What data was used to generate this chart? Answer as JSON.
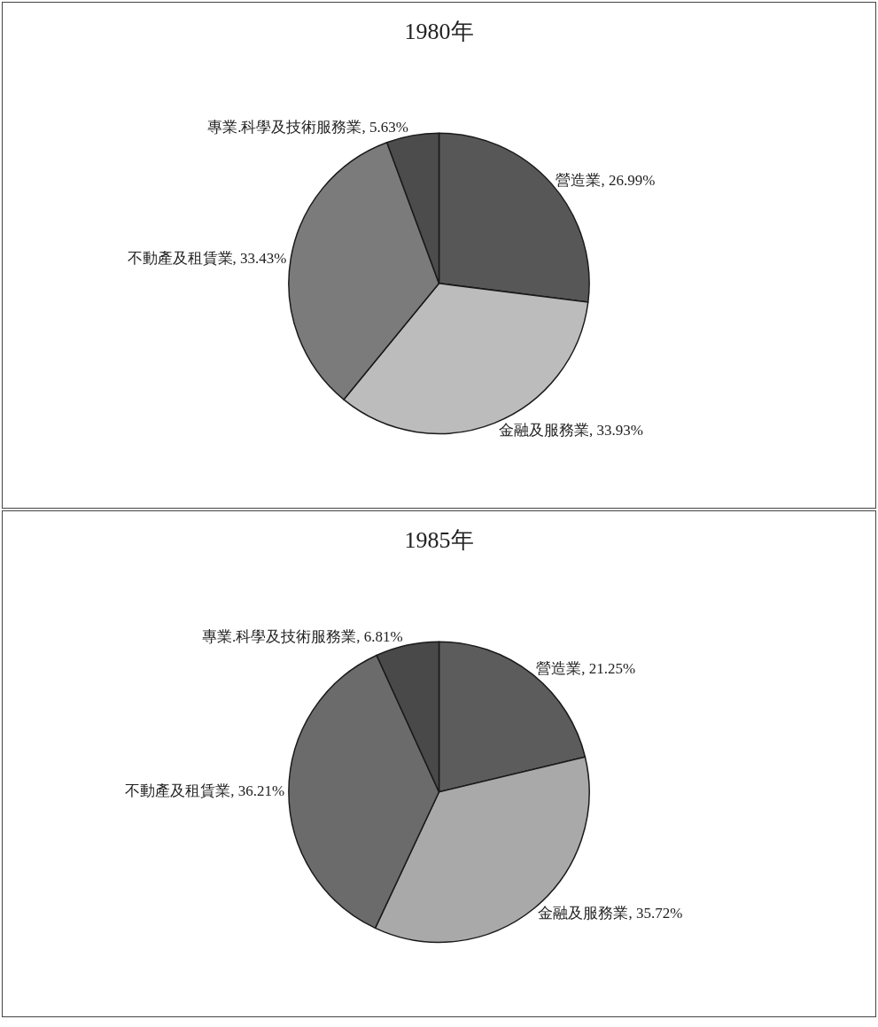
{
  "chart_data": [
    {
      "type": "pie",
      "title": "1980年",
      "categories": [
        "營造業",
        "金融及服務業",
        "不動產及租賃業",
        "專業.科學及技術服務業"
      ],
      "values": [
        26.99,
        33.93,
        33.43,
        5.63
      ],
      "value_labels": [
        "26.99%",
        "33.93%",
        "33.43%",
        "5.63%"
      ],
      "colors": [
        "#575757",
        "#bcbcbc",
        "#7b7b7b",
        "#4c4c4c"
      ]
    },
    {
      "type": "pie",
      "title": "1985年",
      "categories": [
        "營造業",
        "金融及服務業",
        "不動產及租賃業",
        "專業.科學及技術服務業"
      ],
      "values": [
        21.25,
        35.72,
        36.21,
        6.81
      ],
      "value_labels": [
        "21.25%",
        "35.72%",
        "36.21%",
        "6.81%"
      ],
      "colors": [
        "#5c5c5c",
        "#a9a9a9",
        "#6b6b6b",
        "#494949"
      ]
    }
  ]
}
